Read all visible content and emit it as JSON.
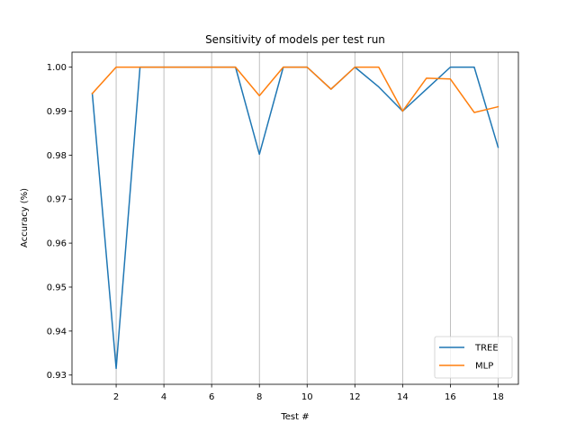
{
  "chart_data": {
    "type": "line",
    "title": "Sensitivity of models per test run",
    "xlabel": "Test #",
    "ylabel": "Accuracy (%)",
    "xlim": [
      0.15,
      18.85
    ],
    "ylim": [
      0.9279,
      1.0034
    ],
    "xticks": [
      2,
      4,
      6,
      8,
      10,
      12,
      14,
      16,
      18
    ],
    "yticks": [
      0.93,
      0.94,
      0.95,
      0.96,
      0.97,
      0.98,
      0.99,
      1.0
    ],
    "ytick_labels": [
      "0.93",
      "0.94",
      "0.95",
      "0.96",
      "0.97",
      "0.98",
      "0.99",
      "1.00"
    ],
    "grid": "vertical",
    "legend_position": "lower-right",
    "x": [
      1,
      2,
      3,
      4,
      5,
      6,
      7,
      8,
      9,
      10,
      11,
      12,
      13,
      14,
      15,
      16,
      17,
      18
    ],
    "series": [
      {
        "name": "TREE",
        "color": "#1f77b4",
        "values": [
          0.994,
          0.9315,
          1.0,
          1.0,
          1.0,
          1.0,
          1.0,
          0.9802,
          1.0,
          1.0,
          0.995,
          1.0,
          0.9955,
          0.99,
          0.995,
          1.0,
          1.0,
          0.9818
        ]
      },
      {
        "name": "MLP",
        "color": "#ff7f0e",
        "values": [
          0.994,
          1.0,
          1.0,
          1.0,
          1.0,
          1.0,
          1.0,
          0.9935,
          1.0,
          1.0,
          0.995,
          1.0,
          1.0,
          0.99,
          0.9975,
          0.9973,
          0.9897,
          0.991
        ]
      }
    ]
  }
}
